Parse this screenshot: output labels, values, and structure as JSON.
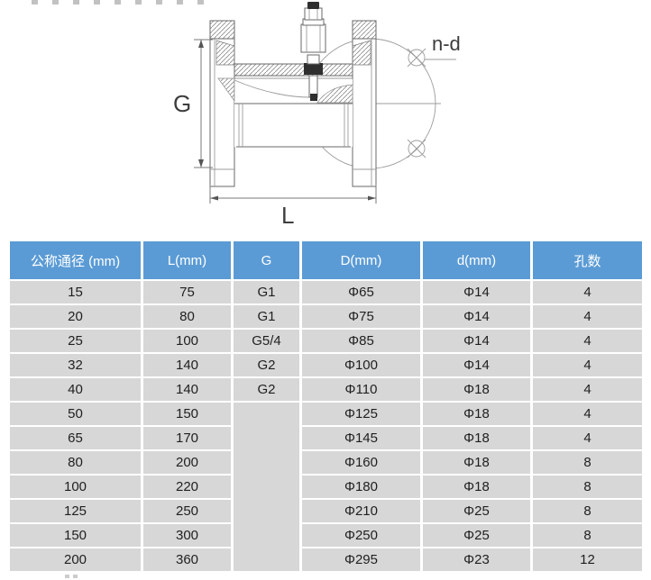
{
  "figure": {
    "dim_label_g": "G",
    "dim_label_l": "L",
    "bolt_label": "n-d"
  },
  "table": {
    "header_bg": "#5b9bd5",
    "header_fg": "#ffffff",
    "row_bg": "#d7d7d7",
    "cell_fg": "#1f1f1f",
    "headers": [
      "公称通径 (mm)",
      "L(mm)",
      "G",
      "D(mm)",
      "d(mm)",
      "孔数"
    ],
    "rows": [
      [
        "15",
        "75",
        "G1",
        "Φ65",
        "Φ14",
        "4"
      ],
      [
        "20",
        "80",
        "G1",
        "Φ75",
        "Φ14",
        "4"
      ],
      [
        "25",
        "100",
        "G5/4",
        "Φ85",
        "Φ14",
        "4"
      ],
      [
        "32",
        "140",
        "G2",
        "Φ100",
        "Φ14",
        "4"
      ],
      [
        "40",
        "140",
        "G2",
        "Φ110",
        "Φ18",
        "4"
      ],
      [
        "50",
        "150",
        {
          "v": "",
          "rowspan": 7
        },
        "Φ125",
        "Φ18",
        "4"
      ],
      [
        "65",
        "170",
        null,
        "Φ145",
        "Φ18",
        "4"
      ],
      [
        "80",
        "200",
        null,
        "Φ160",
        "Φ18",
        "8"
      ],
      [
        "100",
        "220",
        null,
        "Φ180",
        "Φ18",
        "8"
      ],
      [
        "125",
        "250",
        null,
        "Φ210",
        "Φ25",
        "8"
      ],
      [
        "150",
        "300",
        null,
        "Φ250",
        "Φ25",
        "8"
      ],
      [
        "200",
        "360",
        null,
        "Φ295",
        "Φ23",
        "12"
      ]
    ]
  }
}
